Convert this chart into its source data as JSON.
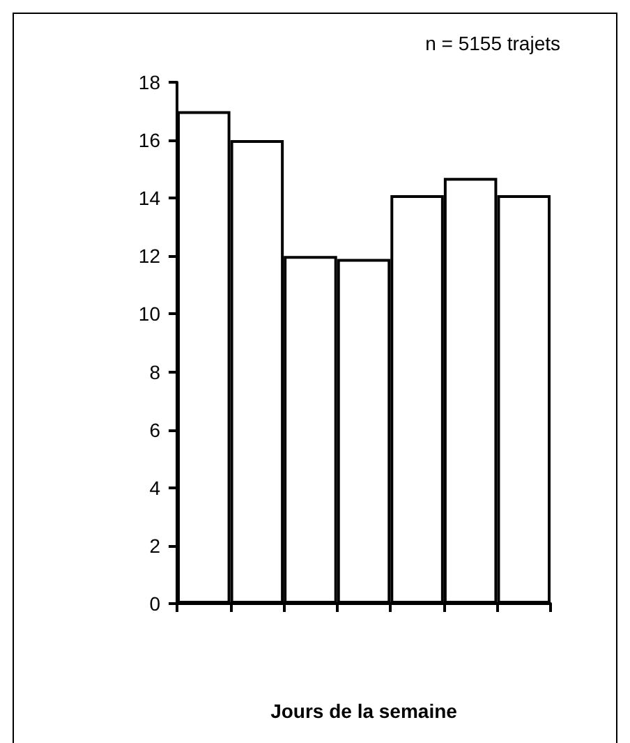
{
  "chart_data": {
    "type": "bar",
    "xlabel": "Jours de la semaine",
    "annotations": [
      "n = 5155 trajets"
    ],
    "categories": [
      null,
      null,
      null,
      null,
      null,
      null,
      null
    ],
    "values": [
      17,
      16,
      12,
      11.9,
      14.1,
      14.7,
      14.1
    ],
    "color": "#ffffff",
    "ylim": [
      0,
      18
    ],
    "yticks": [
      0,
      2,
      4,
      6,
      8,
      10,
      12,
      14,
      16,
      18
    ],
    "grid": false
  }
}
